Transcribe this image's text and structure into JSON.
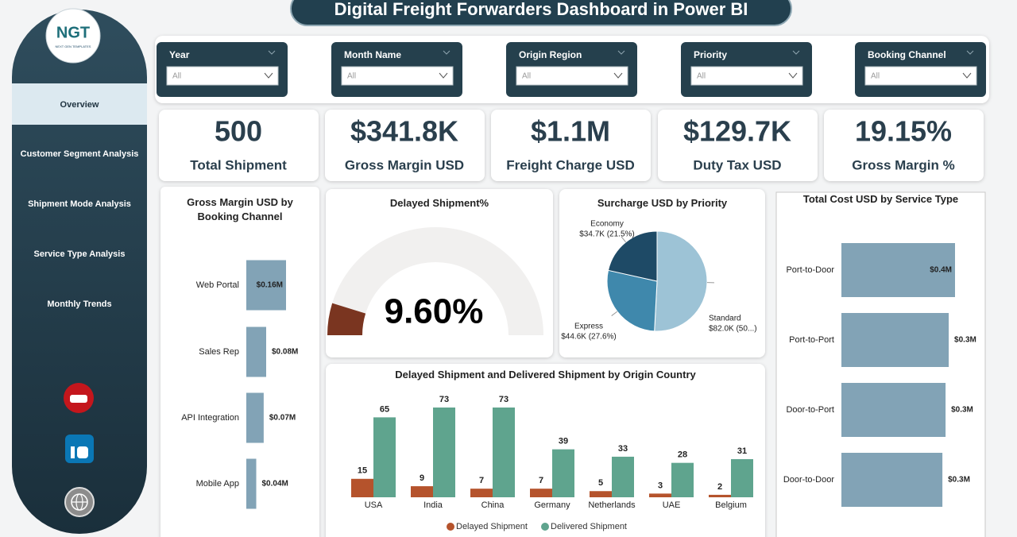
{
  "header": {
    "title": "Digital Freight Forwarders Dashboard in Power BI"
  },
  "logo": {
    "mark": "NGT",
    "tagline": "NEXT GEN TEMPLATES"
  },
  "nav": [
    "Overview",
    "Customer Segment Analysis",
    "Shipment Mode Analysis",
    "Service Type Analysis",
    "Monthly Trends"
  ],
  "filters": [
    {
      "label": "Year",
      "value": "All"
    },
    {
      "label": "Month Name",
      "value": "All"
    },
    {
      "label": "Origin Region",
      "value": "All"
    },
    {
      "label": "Priority",
      "value": "All"
    },
    {
      "label": "Booking Channel",
      "value": "All"
    }
  ],
  "kpis": [
    {
      "value": "500",
      "label": "Total Shipment"
    },
    {
      "value": "$341.8K",
      "label": "Gross Margin USD"
    },
    {
      "value": "$1.1M",
      "label": "Freight Charge USD"
    },
    {
      "value": "$129.7K",
      "label": "Duty Tax USD"
    },
    {
      "value": "19.15%",
      "label": "Gross Margin %"
    }
  ],
  "chart_data": [
    {
      "type": "hbar",
      "title": "Gross Margin USD by Booking Channel",
      "categories": [
        "Web Portal",
        "Sales Rep",
        "API Integration",
        "Mobile App"
      ],
      "values": [
        0.16,
        0.08,
        0.07,
        0.04
      ],
      "value_labels": [
        "$0.16M",
        "$0.08M",
        "$0.07M",
        "$0.04M"
      ],
      "color": "#82a3b6"
    },
    {
      "type": "gauge",
      "title": "Delayed Shipment%",
      "values": [
        9.6
      ],
      "value_labels": [
        "9.60%"
      ],
      "ylim": [
        0,
        100
      ],
      "color": "#7a3520",
      "track_color": "#f1f0ef"
    },
    {
      "type": "pie",
      "title": "Surcharge USD by Priority",
      "categories": [
        "Standard",
        "Express",
        "Economy"
      ],
      "values": [
        82.0,
        44.6,
        34.7
      ],
      "value_labels": [
        "$82.0K (50...)",
        "$44.6K (27.6%)",
        "$34.7K (21.5%)"
      ],
      "colors": [
        "#9dc3d6",
        "#3f88ac",
        "#1e4a66"
      ]
    },
    {
      "type": "bar",
      "title": "Delayed Shipment and Delivered Shipment by Origin Country",
      "categories": [
        "USA",
        "India",
        "China",
        "Germany",
        "Netherlands",
        "UAE",
        "Belgium"
      ],
      "series": [
        {
          "name": "Delayed Shipment",
          "color": "#b5532c",
          "values": [
            15,
            9,
            7,
            7,
            5,
            3,
            2
          ]
        },
        {
          "name": "Delivered Shipment",
          "color": "#5fa48e",
          "values": [
            65,
            73,
            73,
            39,
            33,
            28,
            31
          ]
        }
      ],
      "legend": "bottom"
    },
    {
      "type": "hbar",
      "title": "Total Cost USD by Service Type",
      "categories": [
        "Port-to-Door",
        "Port-to-Port",
        "Door-to-Port",
        "Door-to-Door"
      ],
      "values": [
        0.36,
        0.34,
        0.33,
        0.32
      ],
      "value_labels": [
        "$0.4M",
        "$0.3M",
        "$0.3M",
        "$0.3M"
      ],
      "color": "#82a3b6"
    }
  ]
}
